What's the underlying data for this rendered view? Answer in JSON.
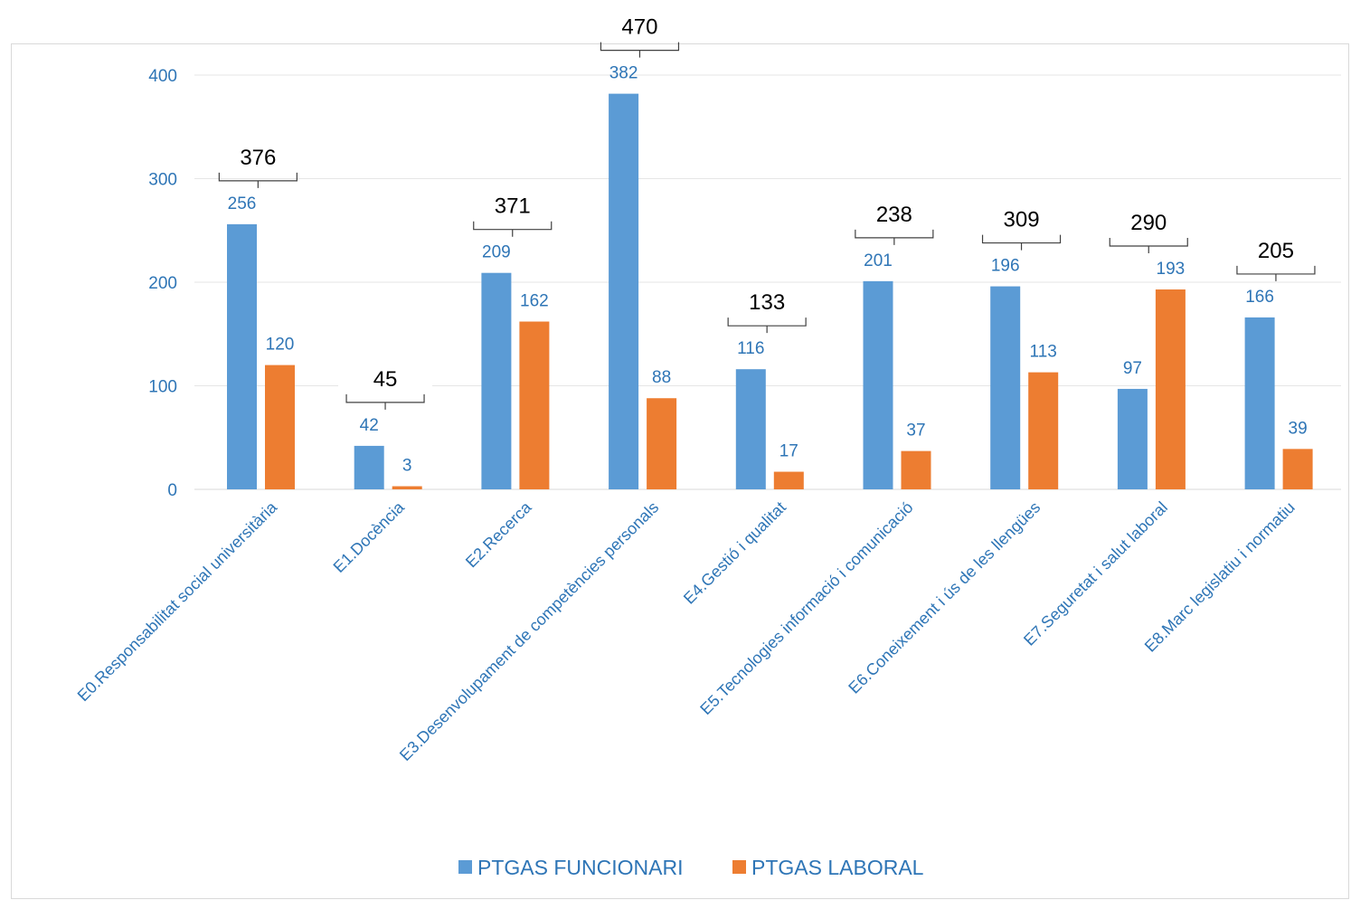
{
  "chart_data": {
    "type": "bar",
    "categories": [
      "E0.Responsabilitat social universitària",
      "E1.Docència",
      "E2.Recerca",
      "E3.Desenvolupament de competències personals",
      "E4.Gestió i qualitat",
      "E5.Tecnologies informació i comunicació",
      "E6.Coneixement i ús de les llengües",
      "E7.Seguretat i salut laboral",
      "E8.Marc legislatiu i normatiu"
    ],
    "series": [
      {
        "name": "PTGAS FUNCIONARI",
        "color": "#5b9bd5",
        "values": [
          256,
          42,
          209,
          382,
          116,
          201,
          196,
          97,
          166
        ]
      },
      {
        "name": "PTGAS LABORAL",
        "color": "#ed7d31",
        "values": [
          120,
          3,
          162,
          88,
          17,
          37,
          113,
          193,
          39
        ]
      }
    ],
    "totals": [
      376,
      45,
      371,
      470,
      133,
      238,
      309,
      290,
      205
    ],
    "yticks": [
      0,
      100,
      200,
      300,
      400
    ],
    "ylim": [
      0,
      400
    ],
    "grid": true,
    "legend_position": "bottom",
    "title": "",
    "xlabel": "",
    "ylabel": ""
  }
}
